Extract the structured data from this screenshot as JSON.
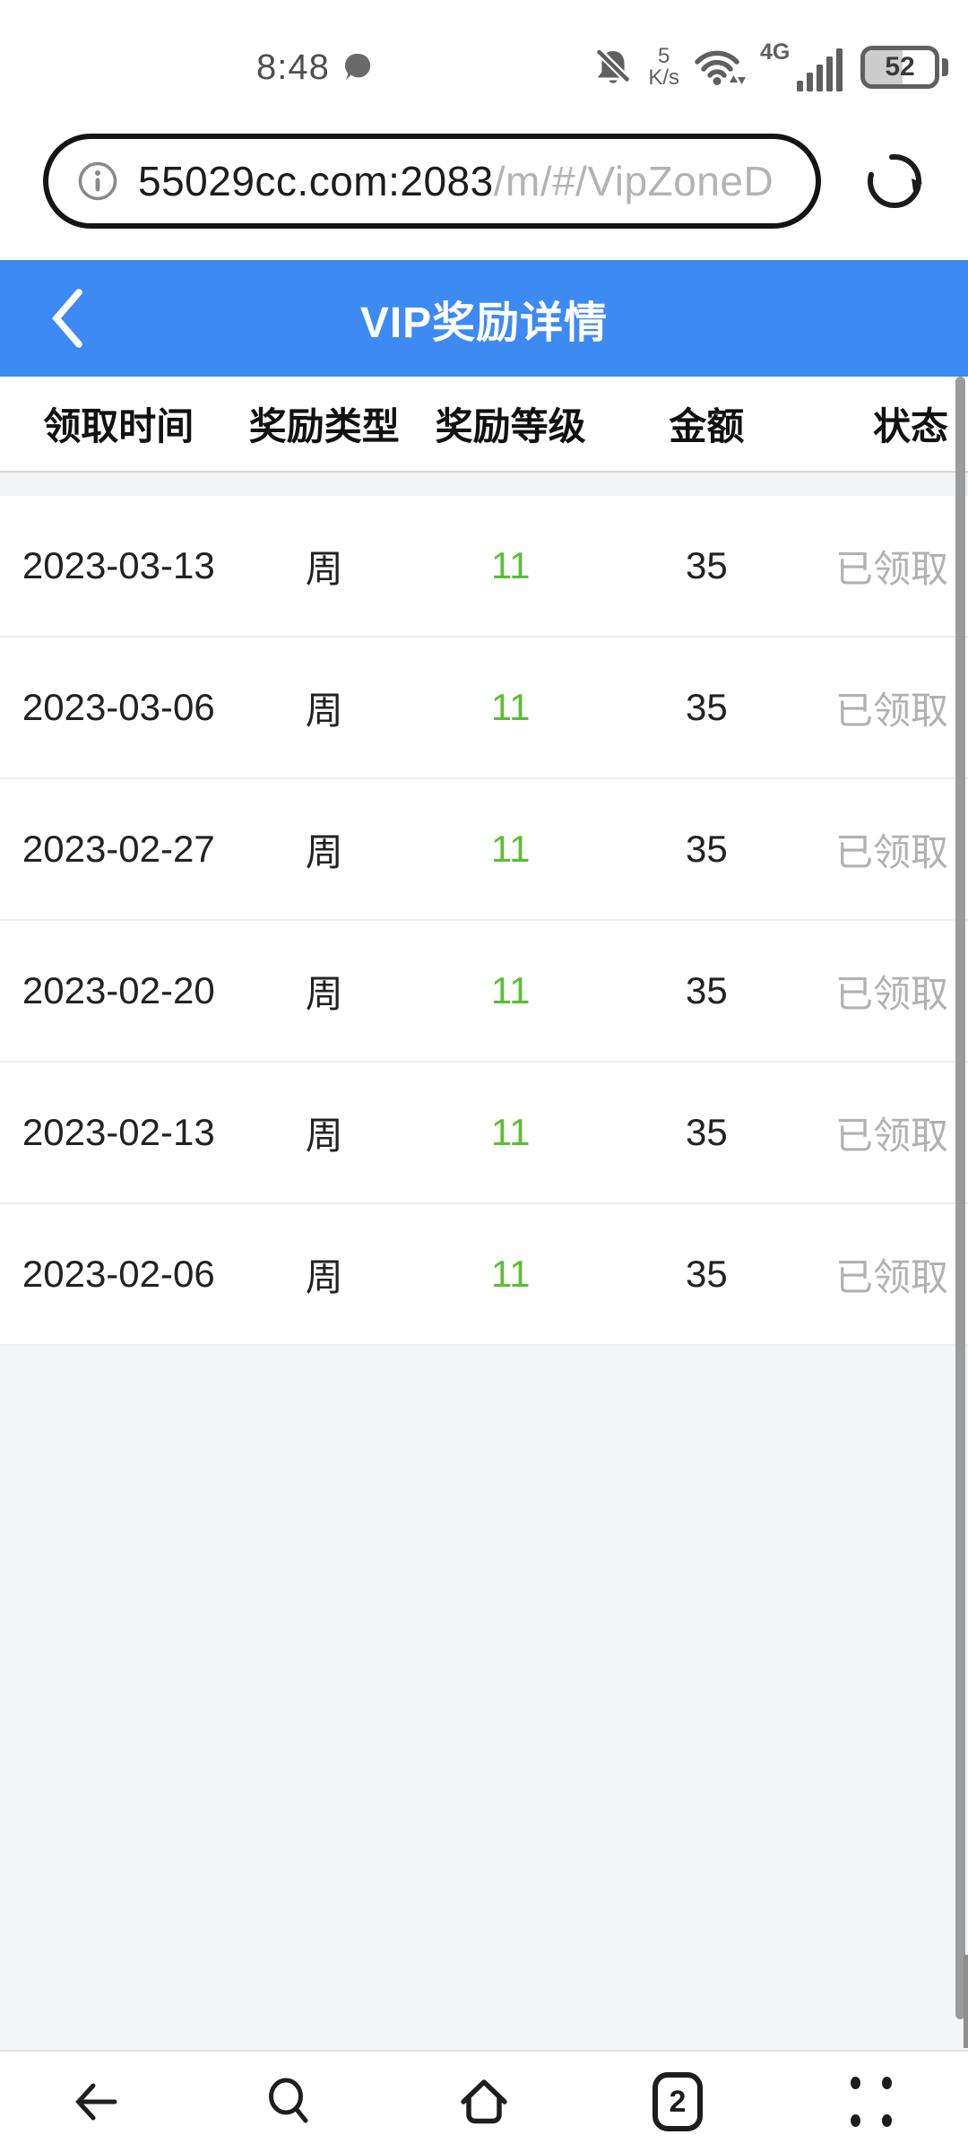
{
  "status_bar": {
    "time": "8:48",
    "network_speed_value": "5",
    "network_speed_unit": "K/s",
    "network_type": "4G",
    "battery_percent": "52"
  },
  "url_bar": {
    "domain": "55029cc.com:2083",
    "path": "/m/#/VipZoneD"
  },
  "header": {
    "title": "VIP奖励详情"
  },
  "table": {
    "columns": [
      "领取时间",
      "奖励类型",
      "奖励等级",
      "金额",
      "状态"
    ],
    "rows": [
      {
        "date": "2023-03-13",
        "type": "周",
        "level": "11",
        "amount": "35",
        "status": "已领取"
      },
      {
        "date": "2023-03-06",
        "type": "周",
        "level": "11",
        "amount": "35",
        "status": "已领取"
      },
      {
        "date": "2023-02-27",
        "type": "周",
        "level": "11",
        "amount": "35",
        "status": "已领取"
      },
      {
        "date": "2023-02-20",
        "type": "周",
        "level": "11",
        "amount": "35",
        "status": "已领取"
      },
      {
        "date": "2023-02-13",
        "type": "周",
        "level": "11",
        "amount": "35",
        "status": "已领取"
      },
      {
        "date": "2023-02-06",
        "type": "周",
        "level": "11",
        "amount": "35",
        "status": "已领取"
      }
    ]
  },
  "nav": {
    "tabs_count": "2"
  },
  "colors": {
    "header_blue": "#3c8af2",
    "level_green": "#5bbd33",
    "status_gray": "#b1b1b1"
  }
}
